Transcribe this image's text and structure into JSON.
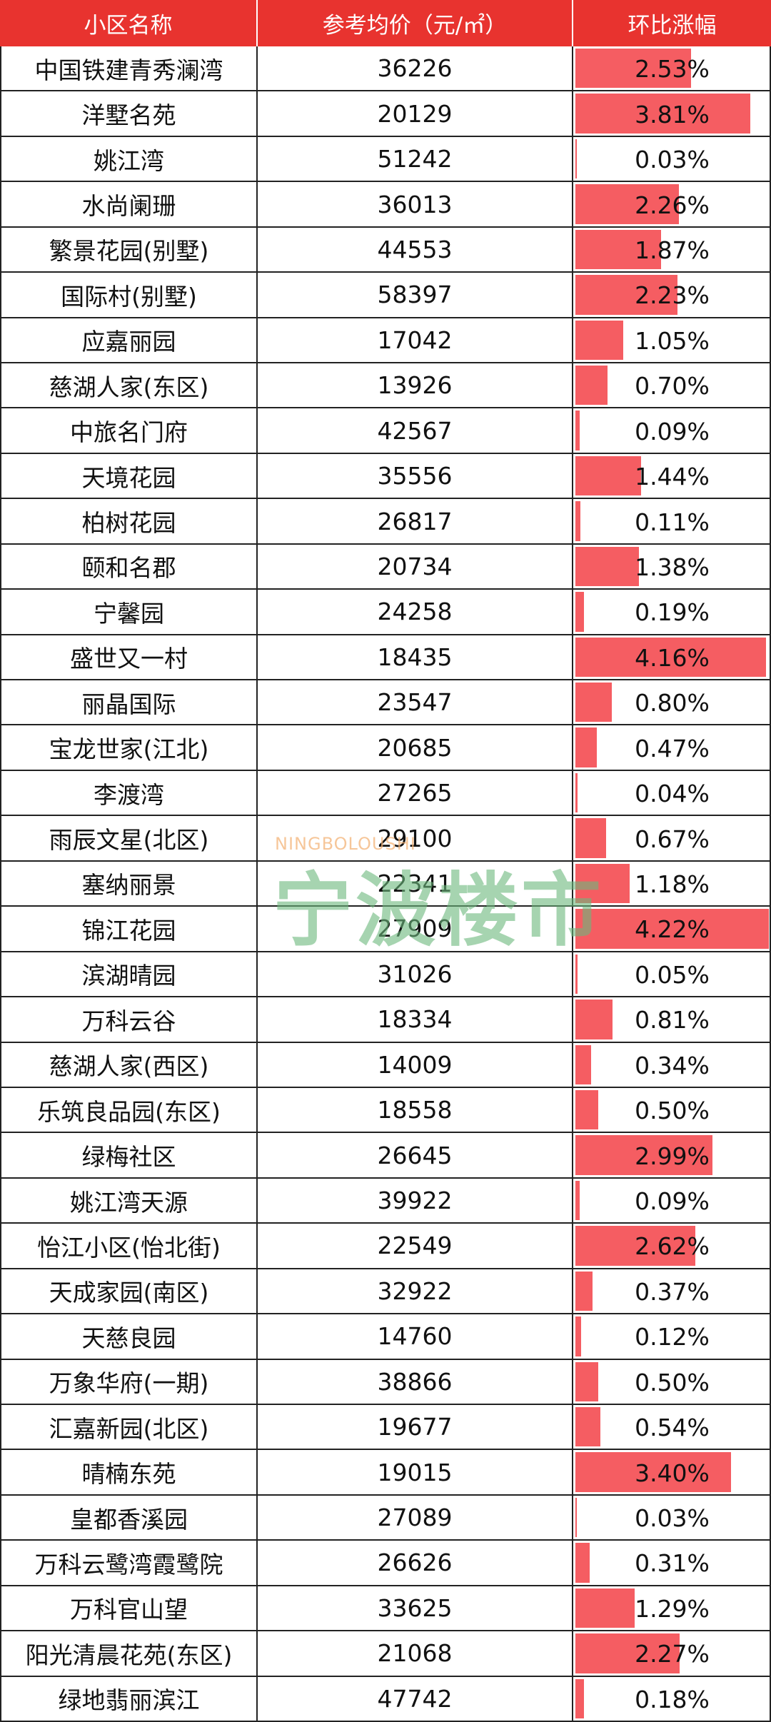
{
  "header": {
    "columns": [
      "小区名称",
      "参考均价（元/㎡）",
      "环比涨幅"
    ]
  },
  "rows": [
    {
      "name": "中国铁建青秀澜湾",
      "price": 36226,
      "change": 2.53,
      "change_label": "2.53%"
    },
    {
      "name": "洋墅名苑",
      "price": 20129,
      "change": 3.81,
      "change_label": "3.81%"
    },
    {
      "name": "姚江湾",
      "price": 51242,
      "change": 0.03,
      "change_label": "0.03%"
    },
    {
      "name": "水尚阑珊",
      "price": 36013,
      "change": 2.26,
      "change_label": "2.26%"
    },
    {
      "name": "繁景花园(别墅)",
      "price": 44553,
      "change": 1.87,
      "change_label": "1.87%"
    },
    {
      "name": "国际村(别墅)",
      "price": 58397,
      "change": 2.23,
      "change_label": "2.23%"
    },
    {
      "name": "应嘉丽园",
      "price": 17042,
      "change": 1.05,
      "change_label": "1.05%"
    },
    {
      "name": "慈湖人家(东区)",
      "price": 13926,
      "change": 0.7,
      "change_label": "0.70%"
    },
    {
      "name": "中旅名门府",
      "price": 42567,
      "change": 0.09,
      "change_label": "0.09%"
    },
    {
      "name": "天境花园",
      "price": 35556,
      "change": 1.44,
      "change_label": "1.44%"
    },
    {
      "name": "柏树花园",
      "price": 26817,
      "change": 0.11,
      "change_label": "0.11%"
    },
    {
      "name": "颐和名郡",
      "price": 20734,
      "change": 1.38,
      "change_label": "1.38%"
    },
    {
      "name": "宁馨园",
      "price": 24258,
      "change": 0.19,
      "change_label": "0.19%"
    },
    {
      "name": "盛世又一村",
      "price": 18435,
      "change": 4.16,
      "change_label": "4.16%"
    },
    {
      "name": "丽晶国际",
      "price": 23547,
      "change": 0.8,
      "change_label": "0.80%"
    },
    {
      "name": "宝龙世家(江北)",
      "price": 20685,
      "change": 0.47,
      "change_label": "0.47%"
    },
    {
      "name": "李渡湾",
      "price": 27265,
      "change": 0.04,
      "change_label": "0.04%"
    },
    {
      "name": "雨辰文星(北区)",
      "price": 29100,
      "change": 0.67,
      "change_label": "0.67%"
    },
    {
      "name": "塞纳丽景",
      "price": 22341,
      "change": 1.18,
      "change_label": "1.18%"
    },
    {
      "name": "锦江花园",
      "price": 27909,
      "change": 4.22,
      "change_label": "4.22%"
    },
    {
      "name": "滨湖晴园",
      "price": 31026,
      "change": 0.05,
      "change_label": "0.05%"
    },
    {
      "name": "万科云谷",
      "price": 18334,
      "change": 0.81,
      "change_label": "0.81%"
    },
    {
      "name": "慈湖人家(西区)",
      "price": 14009,
      "change": 0.34,
      "change_label": "0.34%"
    },
    {
      "name": "乐筑良品园(东区)",
      "price": 18558,
      "change": 0.5,
      "change_label": "0.50%"
    },
    {
      "name": "绿梅社区",
      "price": 26645,
      "change": 2.99,
      "change_label": "2.99%"
    },
    {
      "name": "姚江湾天源",
      "price": 39922,
      "change": 0.09,
      "change_label": "0.09%"
    },
    {
      "name": "怡江小区(怡北街)",
      "price": 22549,
      "change": 2.62,
      "change_label": "2.62%"
    },
    {
      "name": "天成家园(南区)",
      "price": 32922,
      "change": 0.37,
      "change_label": "0.37%"
    },
    {
      "name": "天慈良园",
      "price": 14760,
      "change": 0.12,
      "change_label": "0.12%"
    },
    {
      "name": "万象华府(一期)",
      "price": 38866,
      "change": 0.5,
      "change_label": "0.50%"
    },
    {
      "name": "汇嘉新园(北区)",
      "price": 19677,
      "change": 0.54,
      "change_label": "0.54%"
    },
    {
      "name": "晴楠东苑",
      "price": 19015,
      "change": 3.4,
      "change_label": "3.40%"
    },
    {
      "name": "皇都香溪园",
      "price": 27089,
      "change": 0.03,
      "change_label": "0.03%"
    },
    {
      "name": "万科云鹭湾霞鹭院",
      "price": 26626,
      "change": 0.31,
      "change_label": "0.31%"
    },
    {
      "name": "万科官山望",
      "price": 33625,
      "change": 1.29,
      "change_label": "1.29%"
    },
    {
      "name": "阳光清晨花苑(东区)",
      "price": 21068,
      "change": 2.27,
      "change_label": "2.27%"
    },
    {
      "name": "绿地翡丽滨江",
      "price": 47742,
      "change": 0.18,
      "change_label": "0.18%"
    }
  ],
  "watermark": {
    "latin": "NINGBOLOUSHI",
    "title": "宁波楼市"
  }
}
